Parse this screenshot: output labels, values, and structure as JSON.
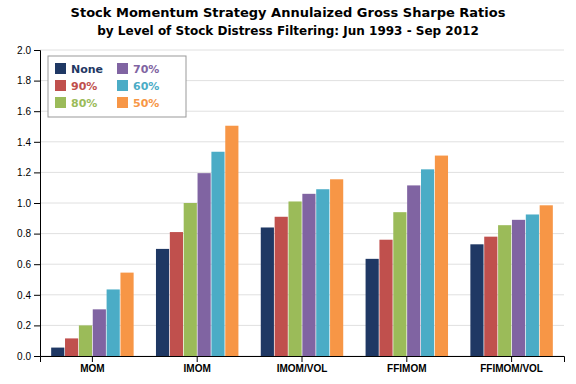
{
  "chart_data": {
    "type": "bar",
    "title": "Stock Momentum Strategy Annulaized Gross Sharpe Ratios",
    "subtitle": "by Level of Stock Distress Filtering: Jun 1993 - Sep 2012",
    "categories": [
      "MOM",
      "IMOM",
      "IMOM/VOL",
      "FFIMOM",
      "FFIMOM/VOL"
    ],
    "series": [
      {
        "name": "None",
        "color": "#1F3864",
        "values": [
          0.055,
          0.7,
          0.84,
          0.635,
          0.73
        ]
      },
      {
        "name": "90%",
        "color": "#C0504D",
        "values": [
          0.115,
          0.81,
          0.91,
          0.76,
          0.78
        ]
      },
      {
        "name": "80%",
        "color": "#9BBB59",
        "values": [
          0.2,
          1.0,
          1.01,
          0.94,
          0.855
        ]
      },
      {
        "name": "70%",
        "color": "#8064A2",
        "values": [
          0.305,
          1.195,
          1.06,
          1.115,
          0.89
        ]
      },
      {
        "name": "60%",
        "color": "#4BACC6",
        "values": [
          0.435,
          1.335,
          1.09,
          1.22,
          0.925
        ]
      },
      {
        "name": "50%",
        "color": "#F79646",
        "values": [
          0.545,
          1.505,
          1.155,
          1.31,
          0.985
        ]
      }
    ],
    "ylim": [
      0.0,
      2.0
    ],
    "yticks": [
      {
        "value": 0.0,
        "label": "0.0"
      },
      0.2,
      0.4,
      0.6,
      0.8,
      {
        "value": 1.0,
        "label": "1.0"
      },
      1.2,
      1.4,
      1.6,
      1.8,
      {
        "value": 2.0,
        "label": "2.0"
      }
    ],
    "grid": true,
    "legend": "upper left"
  }
}
